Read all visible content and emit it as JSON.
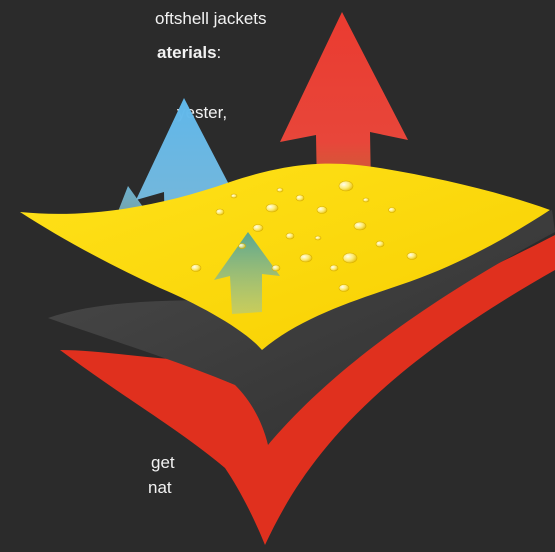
{
  "text": {
    "line_1": "oftshell jackets",
    "line_2_bold": "aterials",
    "line_2_after": ":",
    "line_3": "yester,",
    "line_4": "get",
    "line_5": "nat"
  },
  "colors": {
    "background": "#2b2b2b",
    "yellow_layer": "#ffd800",
    "gray_layer": "#3a3a3a",
    "red_layer": "#e0301e",
    "blue_arrow": "#5fb7ea",
    "green_arrow": "#5fa88a",
    "red_arrow": "#e8463a"
  },
  "illustration": {
    "layers": [
      "yellow-layer",
      "gray-layer",
      "red-layer"
    ],
    "arrows": [
      "red-arrow",
      "blue-arrow-large",
      "blue-arrow-small",
      "green-arrow"
    ]
  }
}
